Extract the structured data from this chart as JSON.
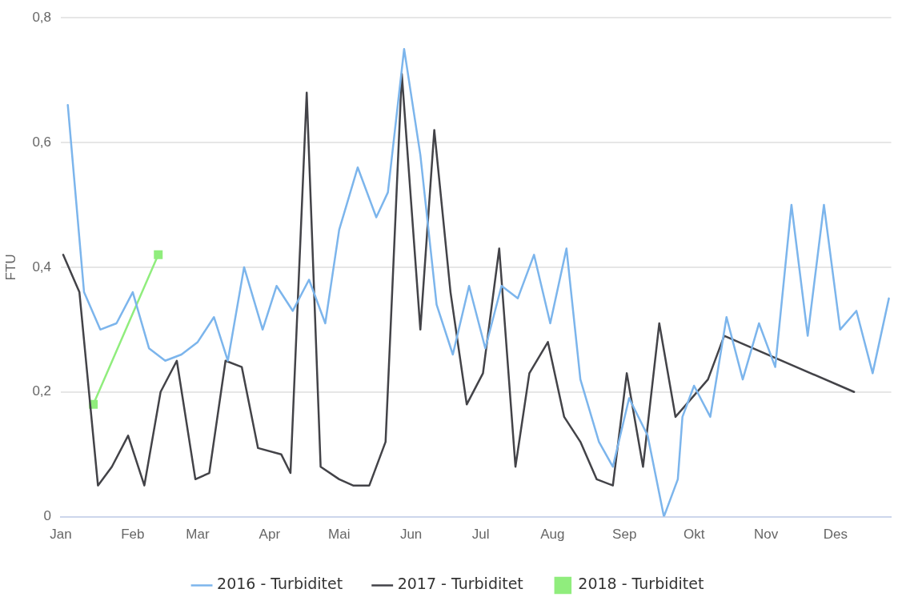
{
  "chart_data": {
    "type": "line",
    "ylabel": "FTU",
    "xlim": [
      "--01-01",
      "--12-25"
    ],
    "xticks": [
      {
        "value": "--01-01",
        "label": "Jan"
      },
      {
        "value": "--02-01",
        "label": "Feb"
      },
      {
        "value": "--03-01",
        "label": "Mar"
      },
      {
        "value": "--04-01",
        "label": "Apr"
      },
      {
        "value": "--05-01",
        "label": "Mai"
      },
      {
        "value": "--06-01",
        "label": "Jun"
      },
      {
        "value": "--07-01",
        "label": "Jul"
      },
      {
        "value": "--08-01",
        "label": "Aug"
      },
      {
        "value": "--09-01",
        "label": "Sep"
      },
      {
        "value": "--10-01",
        "label": "Okt"
      },
      {
        "value": "--11-01",
        "label": "Nov"
      },
      {
        "value": "--12-01",
        "label": "Des"
      }
    ],
    "ylim": [
      0,
      0.8
    ],
    "yticks": [
      {
        "value": 0,
        "label": "0"
      },
      {
        "value": 0.2,
        "label": "0,2"
      },
      {
        "value": 0.4,
        "label": "0,4"
      },
      {
        "value": 0.6,
        "label": "0,6"
      },
      {
        "value": 0.8,
        "label": "0,8"
      }
    ],
    "grid": "y",
    "legend": "bottom",
    "line_style": "solid",
    "series": [
      {
        "name": "2016 - Turbiditet",
        "color": "#7cb5ec",
        "marker": "none",
        "x": [
          "--01-04",
          "--01-11",
          "--01-18",
          "--01-25",
          "--02-01",
          "--02-08",
          "--02-15",
          "--02-22",
          "--03-01",
          "--03-08",
          "--03-14",
          "--03-21",
          "--03-29",
          "--04-04",
          "--04-11",
          "--04-18",
          "--04-25",
          "--05-01",
          "--05-09",
          "--05-17",
          "--05-22",
          "--05-29",
          "--06-05",
          "--06-12",
          "--06-19",
          "--06-26",
          "--07-03",
          "--07-10",
          "--07-17",
          "--07-24",
          "--07-31",
          "--08-07",
          "--08-13",
          "--08-21",
          "--08-27",
          "--09-03",
          "--09-11",
          "--09-18",
          "--09-24",
          "--09-26",
          "--10-01",
          "--10-08",
          "--10-15",
          "--10-22",
          "--10-29",
          "--11-05",
          "--11-12",
          "--11-19",
          "--11-26",
          "--12-03",
          "--12-10",
          "--12-17",
          "--12-24"
        ],
        "values": [
          0.66,
          0.36,
          0.3,
          0.31,
          0.36,
          0.27,
          0.25,
          0.26,
          0.28,
          0.32,
          0.25,
          0.4,
          0.3,
          0.37,
          0.33,
          0.38,
          0.31,
          0.46,
          0.56,
          0.48,
          0.52,
          0.75,
          0.58,
          0.34,
          0.26,
          0.37,
          0.27,
          0.37,
          0.35,
          0.42,
          0.31,
          0.43,
          0.22,
          0.12,
          0.08,
          0.19,
          0.13,
          0.0,
          0.06,
          0.16,
          0.21,
          0.16,
          0.32,
          0.22,
          0.31,
          0.24,
          0.5,
          0.29,
          0.5,
          0.3,
          0.33,
          0.23,
          0.35
        ]
      },
      {
        "name": "2017 - Turbiditet",
        "color": "#434348",
        "marker": "none",
        "x": [
          "--01-02",
          "--01-09",
          "--01-17",
          "--01-23",
          "--01-30",
          "--02-06",
          "--02-13",
          "--02-20",
          "--02-28",
          "--03-06",
          "--03-13",
          "--03-20",
          "--03-27",
          "--04-06",
          "--04-10",
          "--04-17",
          "--04-23",
          "--05-01",
          "--05-07",
          "--05-14",
          "--05-21",
          "--05-28",
          "--06-05",
          "--06-11",
          "--06-18",
          "--06-25",
          "--07-02",
          "--07-09",
          "--07-16",
          "--07-22",
          "--07-30",
          "--08-06",
          "--08-13",
          "--08-20",
          "--08-27",
          "--09-02",
          "--09-09",
          "--09-16",
          "--09-23",
          "--10-07",
          "--10-14",
          "--12-09"
        ],
        "values": [
          0.42,
          0.36,
          0.05,
          0.08,
          0.13,
          0.05,
          0.2,
          0.25,
          0.06,
          0.07,
          0.25,
          0.24,
          0.11,
          0.1,
          0.07,
          0.68,
          0.08,
          0.06,
          0.05,
          0.05,
          0.12,
          0.71,
          0.3,
          0.62,
          0.36,
          0.18,
          0.23,
          0.43,
          0.08,
          0.23,
          0.28,
          0.16,
          0.12,
          0.06,
          0.05,
          0.23,
          0.08,
          0.31,
          0.16,
          0.22,
          0.29,
          0.2
        ]
      },
      {
        "name": "2018 - Turbiditet",
        "color": "#90ed7d",
        "marker": "square",
        "x": [
          "--01-15",
          "--02-12"
        ],
        "values": [
          0.18,
          0.42
        ]
      }
    ]
  }
}
